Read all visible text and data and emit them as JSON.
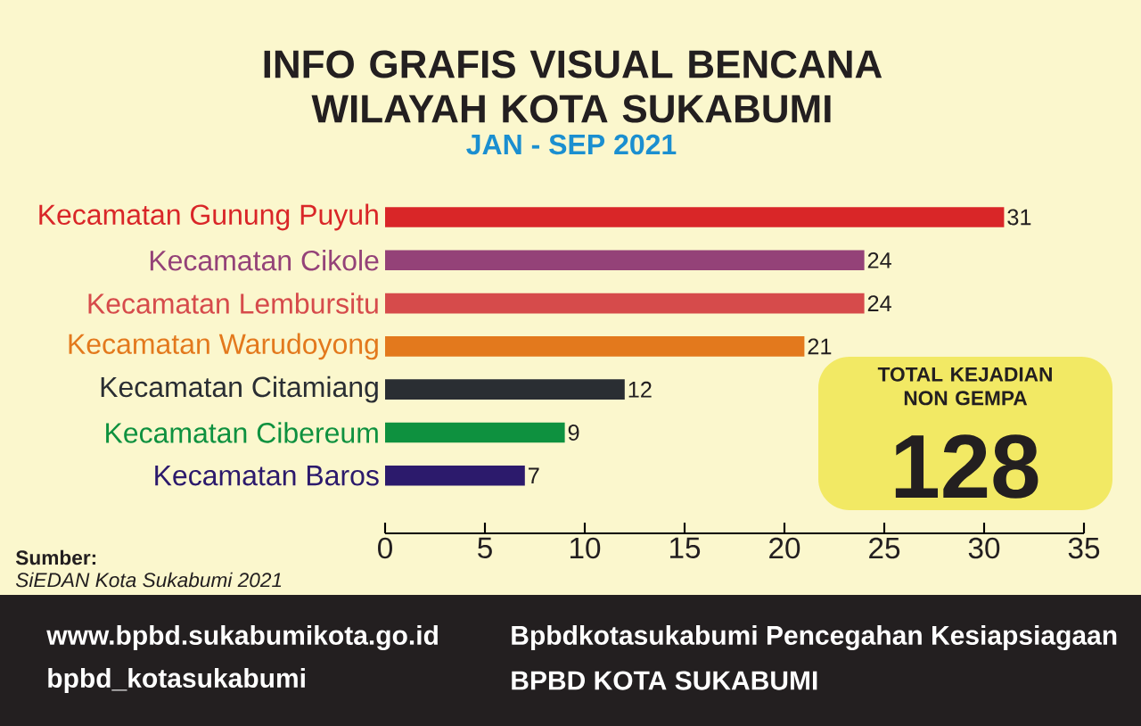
{
  "chart_data": {
    "type": "bar",
    "orientation": "horizontal",
    "title": "INFO GRAFIS VISUAL BENCANA WILAYAH KOTA SUKABUMI",
    "subtitle": "JAN - SEP 2021",
    "categories": [
      "Kecamatan Gunung Puyuh",
      "Kecamatan Cikole",
      "Kecamatan Lembursitu",
      "Kecamatan Warudoyong",
      "Kecamatan Citamiang",
      "Kecamatan Cibereum",
      "Kecamatan Baros"
    ],
    "values": [
      31,
      24,
      24,
      21,
      12,
      9,
      7
    ],
    "colors": [
      "#d92628",
      "#944278",
      "#d64b4b",
      "#e3791d",
      "#2a2e33",
      "#0e913f",
      "#2c1a6c"
    ],
    "xlim": [
      0,
      35
    ],
    "xticks": [
      0,
      5,
      10,
      15,
      20,
      25,
      30,
      35
    ],
    "data_labels": true,
    "annotations": [
      "Sumber:",
      "SiEDAN Kota Sukabumi 2021",
      "TOTAL KEJADIAN NON GEMPA",
      "128",
      "www.bpbd.sukabumikota.go.id",
      "bpbd_kotasukabumi",
      "Bpbdkotasukabumi Pencegahan Kesiapsiagaan",
      "BPBD KOTA SUKABUMI"
    ]
  }
}
